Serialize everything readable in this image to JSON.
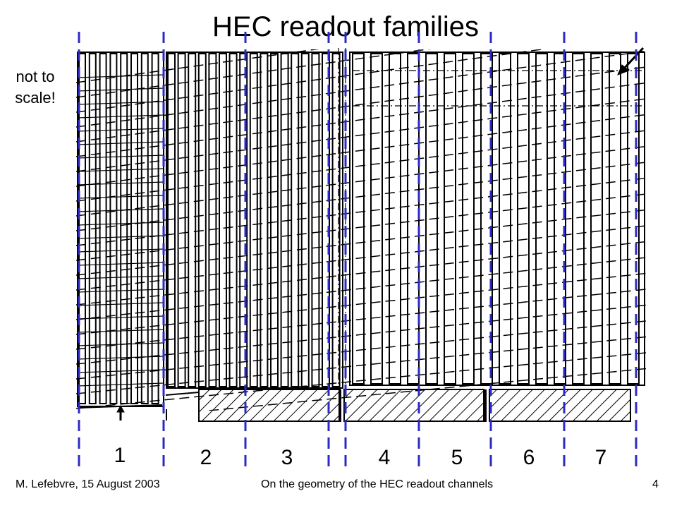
{
  "slide": {
    "title": "HEC readout families",
    "note": "not to scale!"
  },
  "families": [
    "1",
    "2",
    "3",
    "4",
    "5",
    "6",
    "7"
  ],
  "footer": {
    "author_date": "M. Lefebvre, 15 August 2003",
    "topic": "On the geometry of the HEC readout channels",
    "page": "4"
  },
  "colors": {
    "boundary_lines": "#2b2bc4",
    "drawing": "#000000",
    "background": "#ffffff"
  }
}
